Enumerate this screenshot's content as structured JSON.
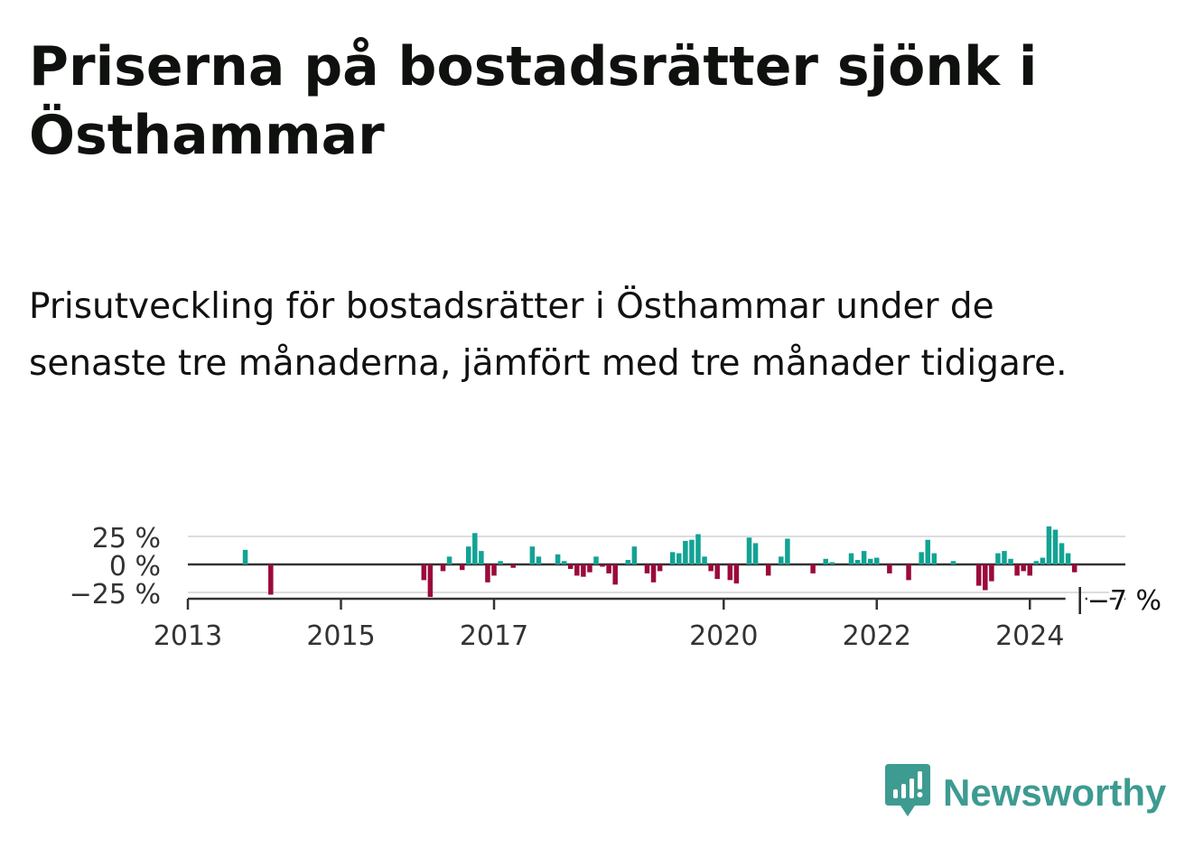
{
  "title": "Priserna på bostadsrätter sjönk i Östhammar",
  "subtitle": "Prisutveckling för bostadsrätter i Östhammar under de senaste tre månaderna, jämfört med tre månader tidigare.",
  "brand": {
    "name": "Newsworthy",
    "icon": "newsworthy-logo-icon",
    "color": "#3d9b91"
  },
  "colors": {
    "positive": "#12a394",
    "negative": "#9b0a3a",
    "axis": "#333333",
    "grid": "#dddddd"
  },
  "chart_data": {
    "type": "bar",
    "title": "",
    "xlabel": "",
    "ylabel": "",
    "ylim": [
      -30,
      32
    ],
    "xlim": [
      "2013-01",
      "2025-03"
    ],
    "y_ticks": [
      {
        "value": 25,
        "label": "25 %"
      },
      {
        "value": 0,
        "label": "0 %"
      },
      {
        "value": -25,
        "label": "−25 %"
      }
    ],
    "x_ticks": [
      {
        "date": "2013-01",
        "label": "2013"
      },
      {
        "date": "2015-01",
        "label": "2015"
      },
      {
        "date": "2017-01",
        "label": "2017"
      },
      {
        "date": "2020-01",
        "label": "2020"
      },
      {
        "date": "2022-01",
        "label": "2022"
      },
      {
        "date": "2024-01",
        "label": "2024"
      }
    ],
    "grid": true,
    "last_value": {
      "date": "2024-08",
      "value": -7,
      "label": "−7 %"
    },
    "series": [
      {
        "values": [
          {
            "date": "2013-10",
            "value": 13
          },
          {
            "date": "2014-02",
            "value": -27
          },
          {
            "date": "2016-02",
            "value": -14
          },
          {
            "date": "2016-03",
            "value": -29
          },
          {
            "date": "2016-05",
            "value": -6
          },
          {
            "date": "2016-06",
            "value": 7
          },
          {
            "date": "2016-08",
            "value": -5
          },
          {
            "date": "2016-09",
            "value": 16
          },
          {
            "date": "2016-10",
            "value": 28
          },
          {
            "date": "2016-11",
            "value": 12
          },
          {
            "date": "2016-12",
            "value": -16
          },
          {
            "date": "2017-01",
            "value": -10
          },
          {
            "date": "2017-02",
            "value": 3
          },
          {
            "date": "2017-04",
            "value": -3
          },
          {
            "date": "2017-07",
            "value": 16
          },
          {
            "date": "2017-08",
            "value": 7
          },
          {
            "date": "2017-11",
            "value": 9
          },
          {
            "date": "2017-12",
            "value": 3
          },
          {
            "date": "2018-01",
            "value": -4
          },
          {
            "date": "2018-02",
            "value": -10
          },
          {
            "date": "2018-03",
            "value": -11
          },
          {
            "date": "2018-04",
            "value": -7
          },
          {
            "date": "2018-05",
            "value": 7
          },
          {
            "date": "2018-06",
            "value": -2
          },
          {
            "date": "2018-07",
            "value": -8
          },
          {
            "date": "2018-08",
            "value": -18
          },
          {
            "date": "2018-10",
            "value": 4
          },
          {
            "date": "2018-11",
            "value": 16
          },
          {
            "date": "2019-01",
            "value": -8
          },
          {
            "date": "2019-02",
            "value": -16
          },
          {
            "date": "2019-03",
            "value": -6
          },
          {
            "date": "2019-05",
            "value": 11
          },
          {
            "date": "2019-06",
            "value": 10
          },
          {
            "date": "2019-07",
            "value": 21
          },
          {
            "date": "2019-08",
            "value": 22
          },
          {
            "date": "2019-09",
            "value": 27
          },
          {
            "date": "2019-10",
            "value": 7
          },
          {
            "date": "2019-11",
            "value": -6
          },
          {
            "date": "2019-12",
            "value": -13
          },
          {
            "date": "2020-02",
            "value": -14
          },
          {
            "date": "2020-03",
            "value": -17
          },
          {
            "date": "2020-05",
            "value": 24
          },
          {
            "date": "2020-06",
            "value": 19
          },
          {
            "date": "2020-08",
            "value": -10
          },
          {
            "date": "2020-10",
            "value": 7
          },
          {
            "date": "2020-11",
            "value": 23
          },
          {
            "date": "2021-03",
            "value": -8
          },
          {
            "date": "2021-05",
            "value": 5
          },
          {
            "date": "2021-06",
            "value": 2
          },
          {
            "date": "2021-09",
            "value": 10
          },
          {
            "date": "2021-10",
            "value": 4
          },
          {
            "date": "2021-11",
            "value": 12
          },
          {
            "date": "2021-12",
            "value": 5
          },
          {
            "date": "2022-01",
            "value": 6
          },
          {
            "date": "2022-03",
            "value": -8
          },
          {
            "date": "2022-06",
            "value": -14
          },
          {
            "date": "2022-08",
            "value": 11
          },
          {
            "date": "2022-09",
            "value": 22
          },
          {
            "date": "2022-10",
            "value": 10
          },
          {
            "date": "2023-01",
            "value": 3
          },
          {
            "date": "2023-05",
            "value": -19
          },
          {
            "date": "2023-06",
            "value": -23
          },
          {
            "date": "2023-07",
            "value": -15
          },
          {
            "date": "2023-08",
            "value": 10
          },
          {
            "date": "2023-09",
            "value": 12
          },
          {
            "date": "2023-10",
            "value": 5
          },
          {
            "date": "2023-11",
            "value": -10
          },
          {
            "date": "2023-12",
            "value": -6
          },
          {
            "date": "2024-01",
            "value": -10
          },
          {
            "date": "2024-02",
            "value": 3
          },
          {
            "date": "2024-03",
            "value": 6
          },
          {
            "date": "2024-04",
            "value": 34
          },
          {
            "date": "2024-05",
            "value": 31
          },
          {
            "date": "2024-06",
            "value": 19
          },
          {
            "date": "2024-07",
            "value": 10
          },
          {
            "date": "2024-08",
            "value": -7
          }
        ]
      }
    ]
  }
}
